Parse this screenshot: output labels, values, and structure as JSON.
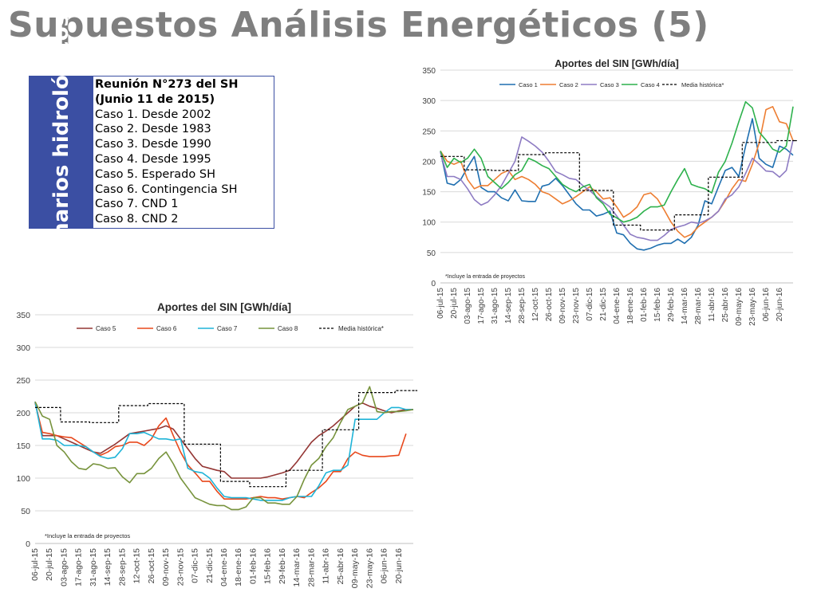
{
  "slide": {
    "title": "Supuestos Análisis Energéticos (5)",
    "sidebar_text": "Escenarios hidrológicos",
    "meeting_line1": "Reunión N°273 del SH",
    "meeting_line2": "(Junio 11 de 2015)",
    "cases": [
      "Caso 1. Desde 2002",
      "Caso 2. Desde 1983",
      "Caso 3. Desde 1990",
      "Caso 4. Desde 1995",
      "Caso 5. Esperado SH",
      "Caso 6. Contingencia SH",
      "Caso 7. CND 1",
      "Caso 8. CND 2"
    ]
  },
  "colors": {
    "title_gray": "#7f7f7f",
    "sidebar_blue": "#3b4fa3",
    "caso1": "#1f6fb0",
    "caso2": "#ed7d31",
    "caso3": "#8e7cc3",
    "caso4": "#2db14c",
    "caso5": "#943634",
    "caso6": "#e8481c",
    "caso7": "#1fb4d8",
    "caso8": "#77933c",
    "media": "#000000"
  },
  "chart_data": [
    {
      "type": "line",
      "title": "Aportes del SIN [GWh/día]",
      "note": "*Incluye la entrada de proyectos",
      "ylim": [
        0,
        350
      ],
      "yticks": [
        0,
        50,
        100,
        150,
        200,
        250,
        300,
        350
      ],
      "x_tick_labels": [
        "06-jul-15",
        "20-jul-15",
        "03-ago-15",
        "17-ago-15",
        "31-ago-15",
        "14-sep-15",
        "28-sep-15",
        "12-oct-15",
        "26-oct-15",
        "09-nov-15",
        "23-nov-15",
        "07-dic-15",
        "21-dic-15",
        "04-ene-16",
        "18-ene-16",
        "01-feb-16",
        "15-feb-16",
        "29-feb-16",
        "14-mar-16",
        "28-mar-16",
        "11-abr-16",
        "25-abr-16",
        "09-may-16",
        "23-may-16",
        "06-jun-16",
        "20-jun-16"
      ],
      "n_weeks": 52,
      "legend_position": "top",
      "series": [
        {
          "name": "Caso 1",
          "color_key": "caso1",
          "dashed": false,
          "values": [
            217,
            164,
            161,
            170,
            190,
            208,
            157,
            150,
            150,
            140,
            135,
            153,
            135,
            134,
            134,
            159,
            162,
            172,
            160,
            145,
            130,
            120,
            120,
            110,
            113,
            118,
            82,
            79,
            65,
            56,
            54,
            57,
            62,
            65,
            65,
            72,
            65,
            75,
            95,
            135,
            130,
            158,
            185,
            190,
            175,
            225,
            270,
            205,
            195,
            190,
            225,
            220,
            210,
            163
          ]
        },
        {
          "name": "Caso 2",
          "color_key": "caso2",
          "dashed": false,
          "values": [
            217,
            200,
            195,
            200,
            170,
            155,
            160,
            160,
            170,
            180,
            185,
            170,
            175,
            170,
            162,
            150,
            146,
            138,
            130,
            135,
            142,
            150,
            158,
            150,
            138,
            140,
            125,
            108,
            115,
            125,
            145,
            148,
            138,
            120,
            100,
            85,
            75,
            80,
            92,
            100,
            108,
            118,
            135,
            155,
            170,
            167,
            195,
            230,
            285,
            290,
            265,
            262,
            234
          ]
        },
        {
          "name": "Caso 3",
          "color_key": "caso3",
          "dashed": false,
          "values": [
            215,
            175,
            175,
            170,
            155,
            137,
            128,
            133,
            145,
            160,
            180,
            200,
            240,
            233,
            225,
            215,
            200,
            183,
            178,
            172,
            170,
            160,
            152,
            142,
            133,
            125,
            110,
            95,
            80,
            75,
            73,
            70,
            70,
            78,
            88,
            92,
            95,
            100,
            98,
            102,
            108,
            118,
            138,
            145,
            158,
            180,
            205,
            195,
            184,
            183,
            174,
            185,
            235,
            245
          ]
        },
        {
          "name": "Caso 4",
          "color_key": "caso4",
          "dashed": false,
          "values": [
            217,
            190,
            205,
            198,
            205,
            220,
            205,
            175,
            165,
            155,
            165,
            178,
            185,
            205,
            200,
            193,
            188,
            175,
            162,
            155,
            150,
            158,
            162,
            140,
            130,
            113,
            107,
            100,
            103,
            108,
            118,
            125,
            125,
            128,
            150,
            170,
            188,
            162,
            158,
            155,
            148,
            182,
            200,
            230,
            265,
            298,
            288,
            248,
            235,
            220,
            215,
            225,
            290,
            310
          ]
        },
        {
          "name": "Media histórica*",
          "color_key": "media",
          "dashed": true,
          "step": true,
          "values": [
            208,
            208,
            208,
            208,
            186,
            186,
            186,
            186,
            185,
            185,
            185,
            185,
            211,
            211,
            211,
            211,
            214,
            214,
            214,
            214,
            214,
            152,
            152,
            152,
            152,
            152,
            95,
            95,
            95,
            95,
            87,
            87,
            87,
            87,
            87,
            112,
            112,
            112,
            112,
            112,
            174,
            174,
            174,
            174,
            174,
            231,
            231,
            231,
            231,
            231,
            234,
            234,
            234,
            234
          ]
        }
      ]
    },
    {
      "type": "line",
      "title": "Aportes del SIN [GWh/día]",
      "note": "*Incluye la entrada de proyectos",
      "ylim": [
        0,
        350
      ],
      "yticks": [
        0,
        50,
        100,
        150,
        200,
        250,
        300,
        350
      ],
      "x_tick_labels": [
        "06-jul-15",
        "20-jul-15",
        "03-ago-15",
        "17-ago-15",
        "31-ago-15",
        "14-sep-15",
        "28-sep-15",
        "12-oct-15",
        "26-oct-15",
        "09-nov-15",
        "23-nov-15",
        "07-dic-15",
        "21-dic-15",
        "04-ene-16",
        "18-ene-16",
        "01-feb-16",
        "15-feb-16",
        "29-feb-16",
        "14-mar-16",
        "28-mar-16",
        "11-abr-16",
        "25-abr-16",
        "09-may-16",
        "23-may-16",
        "06-jun-16",
        "20-jun-16"
      ],
      "n_weeks": 52,
      "legend_position": "top",
      "series": [
        {
          "name": "Caso 5",
          "color_key": "caso5",
          "dashed": false,
          "values": [
            217,
            165,
            165,
            165,
            160,
            155,
            150,
            145,
            140,
            138,
            145,
            152,
            160,
            168,
            170,
            172,
            174,
            176,
            180,
            175,
            160,
            145,
            130,
            118,
            115,
            112,
            110,
            100,
            100,
            100,
            100,
            100,
            102,
            105,
            108,
            112,
            125,
            140,
            155,
            165,
            172,
            180,
            190,
            200,
            210,
            215,
            210,
            207,
            203,
            200,
            203,
            205,
            205
          ]
        },
        {
          "name": "Caso 6",
          "color_key": "caso6",
          "dashed": false,
          "values": [
            215,
            170,
            168,
            165,
            163,
            162,
            155,
            148,
            140,
            135,
            140,
            148,
            150,
            155,
            155,
            150,
            160,
            180,
            192,
            165,
            140,
            120,
            108,
            95,
            95,
            80,
            68,
            68,
            68,
            68,
            70,
            72,
            70,
            70,
            68,
            70,
            72,
            70,
            78,
            85,
            95,
            110,
            110,
            130,
            140,
            135,
            133,
            133,
            133,
            134,
            135,
            168
          ]
        },
        {
          "name": "Caso 7",
          "color_key": "caso7",
          "dashed": false,
          "values": [
            217,
            160,
            160,
            158,
            150,
            150,
            150,
            148,
            140,
            133,
            130,
            132,
            145,
            168,
            168,
            170,
            165,
            160,
            160,
            158,
            160,
            115,
            110,
            108,
            100,
            85,
            72,
            70,
            70,
            70,
            68,
            66,
            66,
            66,
            66,
            70,
            72,
            72,
            72,
            88,
            108,
            112,
            112,
            120,
            190,
            190,
            190,
            190,
            200,
            208,
            208,
            205,
            205
          ]
        },
        {
          "name": "Caso 8",
          "color_key": "caso8",
          "dashed": false,
          "values": [
            217,
            195,
            190,
            150,
            140,
            125,
            115,
            113,
            122,
            120,
            115,
            116,
            102,
            93,
            107,
            107,
            115,
            130,
            140,
            122,
            100,
            85,
            70,
            65,
            60,
            58,
            58,
            52,
            52,
            56,
            70,
            70,
            62,
            62,
            60,
            60,
            72,
            98,
            120,
            130,
            148,
            162,
            185,
            205,
            210,
            215,
            240,
            202,
            200,
            202,
            202,
            203,
            205
          ]
        },
        {
          "name": "Media histórica*",
          "color_key": "media",
          "dashed": true,
          "step": true,
          "values": [
            208,
            208,
            208,
            208,
            186,
            186,
            186,
            186,
            185,
            185,
            185,
            185,
            211,
            211,
            211,
            211,
            214,
            214,
            214,
            214,
            214,
            152,
            152,
            152,
            152,
            152,
            95,
            95,
            95,
            95,
            87,
            87,
            87,
            87,
            87,
            112,
            112,
            112,
            112,
            112,
            174,
            174,
            174,
            174,
            174,
            231,
            231,
            231,
            231,
            231,
            234,
            234,
            234,
            234
          ]
        }
      ]
    }
  ]
}
